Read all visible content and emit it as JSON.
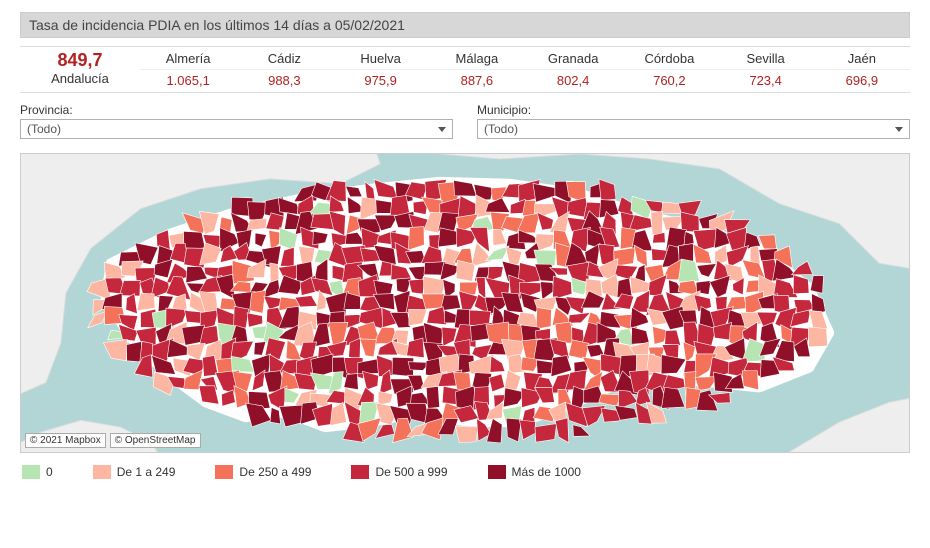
{
  "title": "Tasa de incidencia PDIA en los últimos 14 días a 05/02/2021",
  "overall": {
    "value": "849,7",
    "label": "Andalucía"
  },
  "provinces": [
    {
      "name": "Almería",
      "value": "1.065,1"
    },
    {
      "name": "Cádiz",
      "value": "988,3"
    },
    {
      "name": "Huelva",
      "value": "975,9"
    },
    {
      "name": "Málaga",
      "value": "887,6"
    },
    {
      "name": "Granada",
      "value": "802,4"
    },
    {
      "name": "Córdoba",
      "value": "760,2"
    },
    {
      "name": "Sevilla",
      "value": "723,4"
    },
    {
      "name": "Jaén",
      "value": "696,9"
    }
  ],
  "filters": {
    "provincia": {
      "label": "Provincia:",
      "value": "(Todo)"
    },
    "municipio": {
      "label": "Municipio:",
      "value": "(Todo)"
    }
  },
  "map": {
    "type": "choropleth",
    "sea_color": "#b2d6d6",
    "foreign_land_color": "#eeeeee",
    "attribution": [
      "© 2021 Mapbox",
      "© OpenStreetMap"
    ]
  },
  "legend": [
    {
      "label": "0",
      "color": "#b7e4b3"
    },
    {
      "label": "De 1 a 249",
      "color": "#fcb6a1"
    },
    {
      "label": "De 250 a 499",
      "color": "#f5725a"
    },
    {
      "label": "De 500 a 999",
      "color": "#c5283d"
    },
    {
      "label": "Más de 1000",
      "color": "#8f1028"
    }
  ]
}
